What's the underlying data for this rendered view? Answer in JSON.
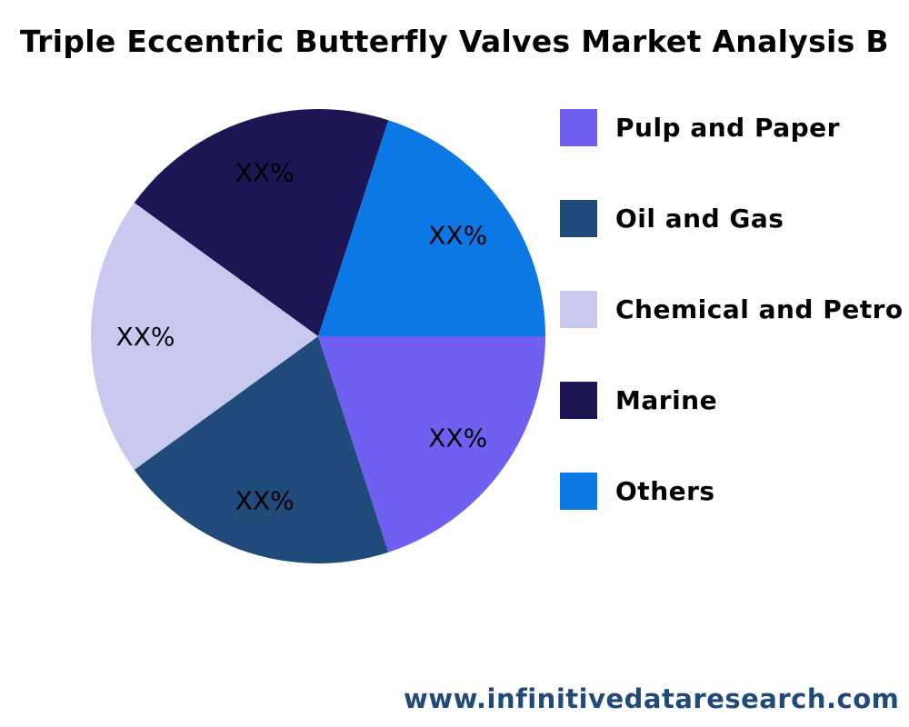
{
  "chart_data": {
    "type": "pie",
    "title": "Triple Eccentric Butterfly Valves  Market Analysis B",
    "legend_placement": "right",
    "slices": [
      {
        "name": "Pulp and Paper",
        "value": 20,
        "label": "XX%",
        "color": "#7060f2"
      },
      {
        "name": "Oil and Gas",
        "value": 20,
        "label": "XX%",
        "color": "#1f4a7a"
      },
      {
        "name": "Chemical and Petro",
        "value": 20,
        "label": "XX%",
        "color": "#c9c9f0"
      },
      {
        "name": "Marine",
        "value": 20,
        "label": "XX%",
        "color": "#1c1654"
      },
      {
        "name": "Others",
        "value": 20,
        "label": "XX%",
        "color": "#0c78e6"
      }
    ]
  },
  "footer": {
    "website": "www.infinitivedataresearch.com"
  }
}
